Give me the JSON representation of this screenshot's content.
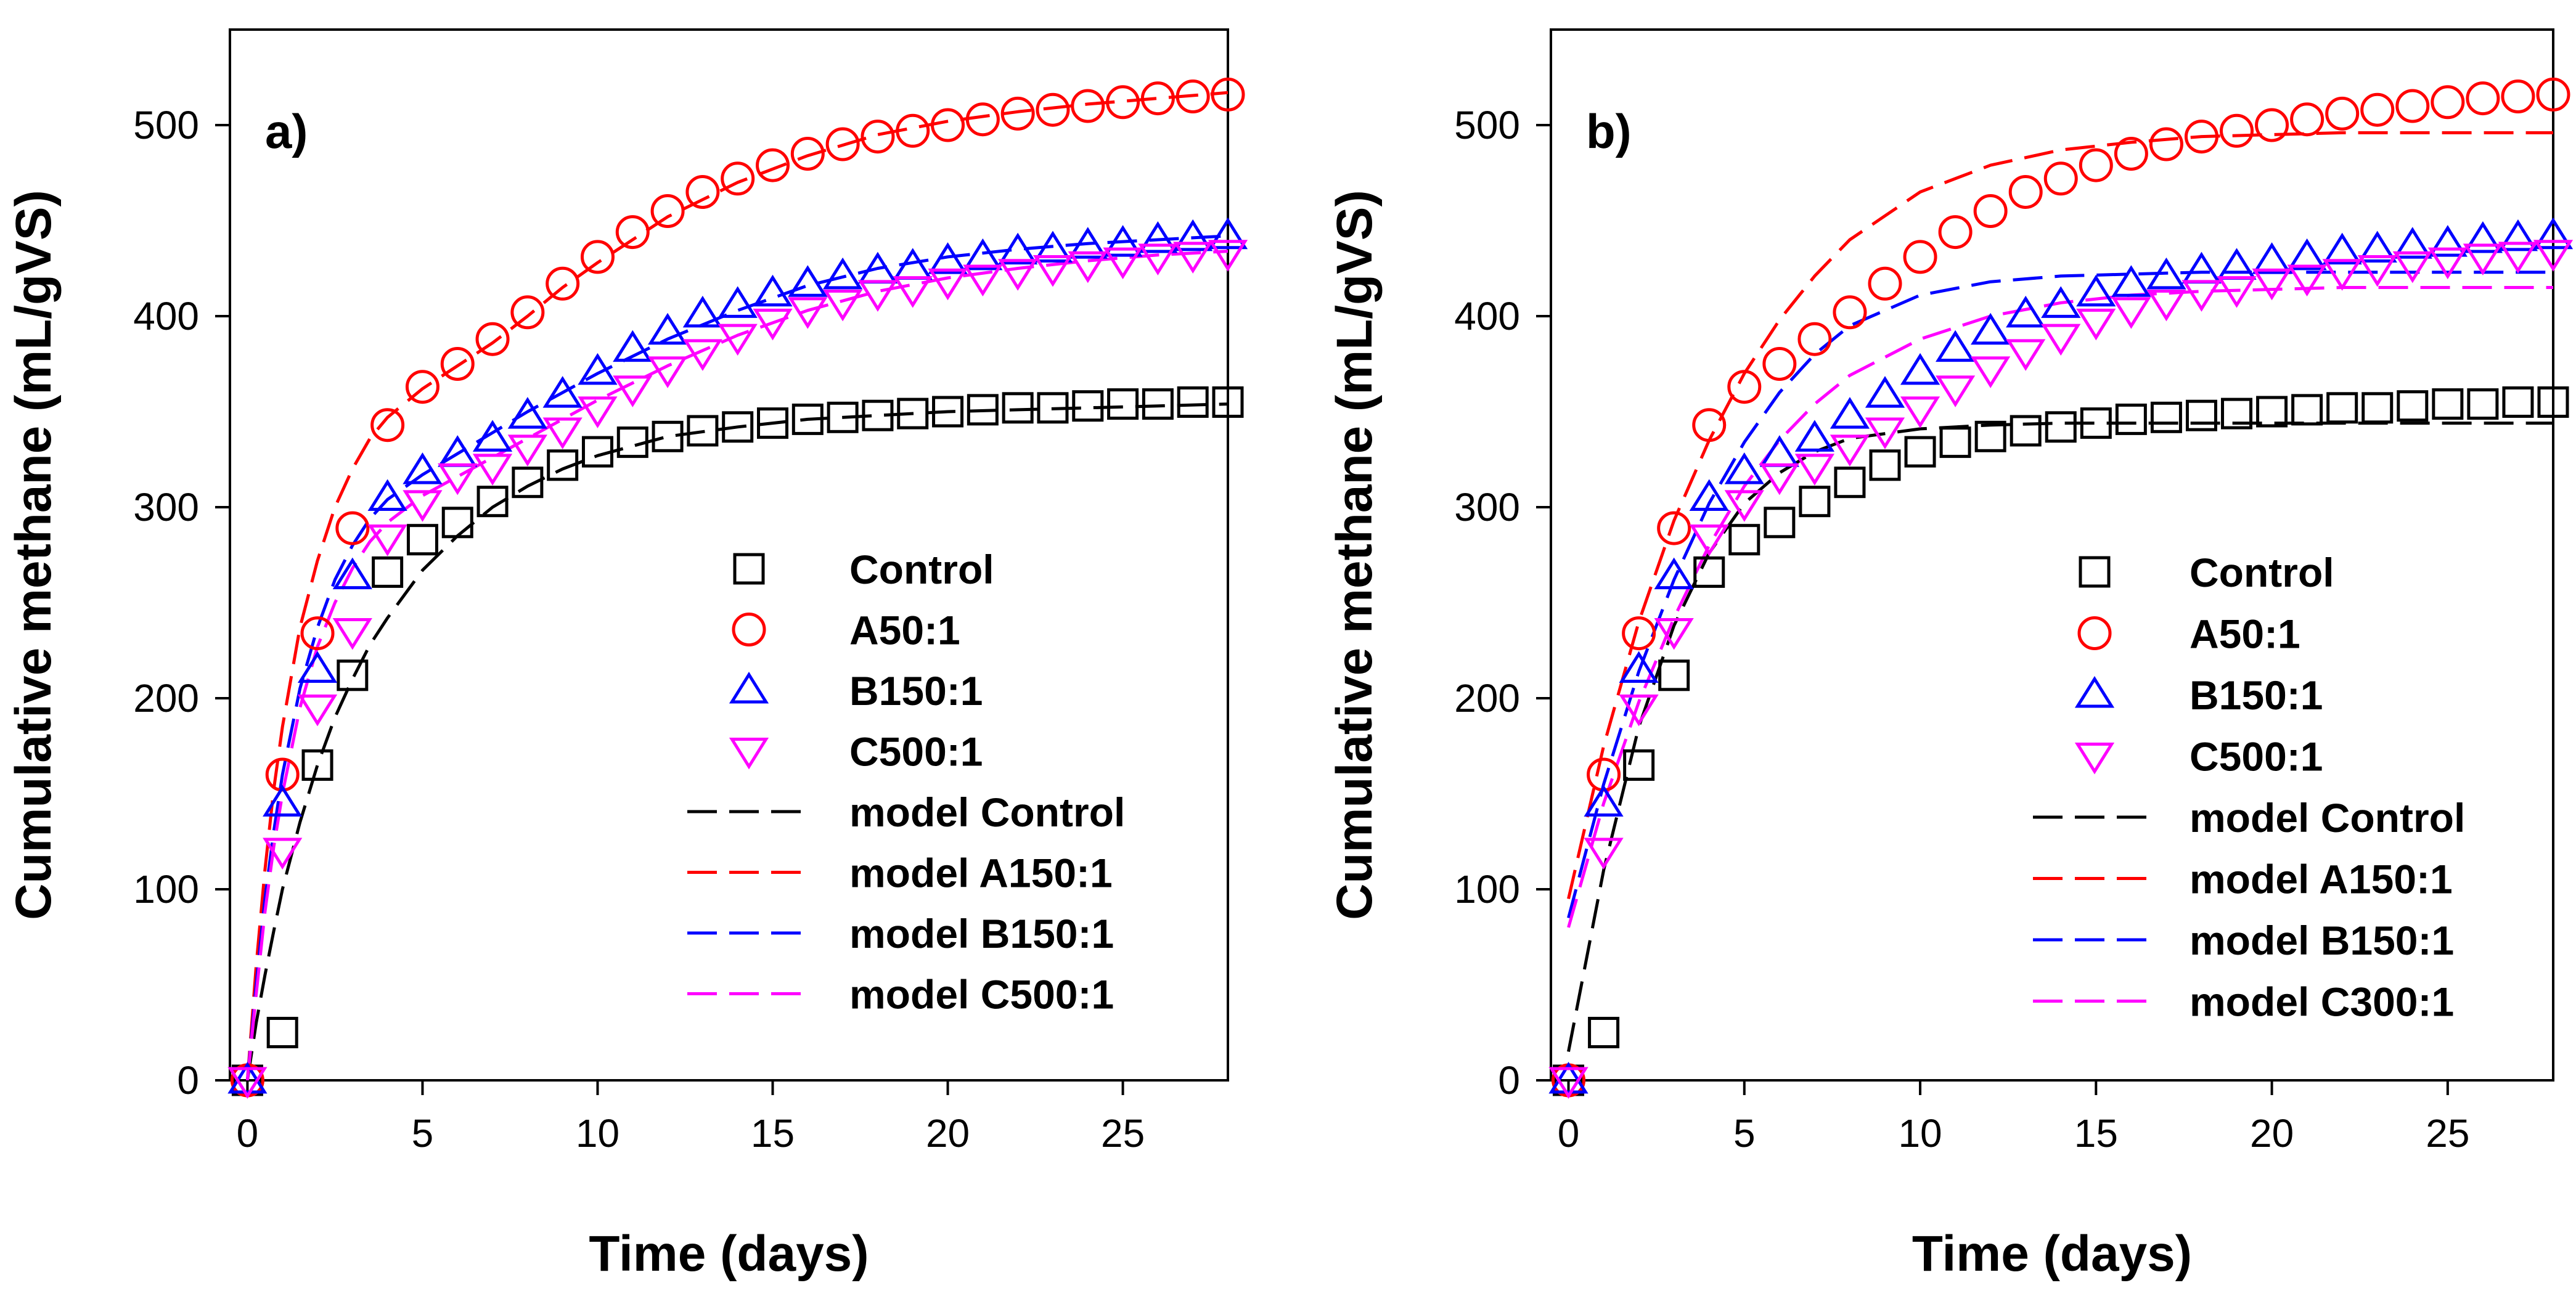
{
  "chart_data": [
    {
      "type": "scatter",
      "panel_label": "a)",
      "xlabel": "Time (days)",
      "ylabel": "Cumulative methane (mL/gVS)",
      "xlim": [
        -0.5,
        28
      ],
      "ylim": [
        0,
        550
      ],
      "xticks": [
        0,
        5,
        10,
        15,
        20,
        25
      ],
      "yticks": [
        0,
        100,
        200,
        300,
        400,
        500
      ],
      "legend_position": "lower-right",
      "series": [
        {
          "name": "Control",
          "kind": "marker",
          "marker": "square",
          "color": "#000000",
          "x": [
            0,
            1,
            2,
            3,
            4,
            5,
            6,
            7,
            8,
            9,
            10,
            11,
            12,
            13,
            14,
            15,
            16,
            17,
            18,
            19,
            20,
            21,
            22,
            23,
            24,
            25,
            26,
            27,
            28
          ],
          "y": [
            0,
            25,
            165,
            212,
            266,
            283,
            292,
            303,
            313,
            322,
            329,
            334,
            337,
            340,
            342,
            344,
            346,
            347,
            348,
            349,
            350,
            351,
            352,
            352,
            353,
            354,
            354,
            355,
            355
          ]
        },
        {
          "name": "A50:1",
          "kind": "marker",
          "marker": "circle",
          "color": "#ff0000",
          "x": [
            0,
            1,
            2,
            3,
            4,
            5,
            6,
            7,
            8,
            9,
            10,
            11,
            12,
            13,
            14,
            15,
            16,
            17,
            18,
            19,
            20,
            21,
            22,
            23,
            24,
            25,
            26,
            27,
            28
          ],
          "y": [
            0,
            160,
            234,
            289,
            343,
            363,
            375,
            388,
            402,
            417,
            431,
            444,
            455,
            465,
            472,
            479,
            485,
            490,
            494,
            497,
            500,
            503,
            506,
            508,
            510,
            512,
            514,
            515,
            516
          ]
        },
        {
          "name": "B150:1",
          "kind": "marker",
          "marker": "triangle-up",
          "color": "#0000ff",
          "x": [
            0,
            1,
            2,
            3,
            4,
            5,
            6,
            7,
            8,
            9,
            10,
            11,
            12,
            13,
            14,
            15,
            16,
            17,
            18,
            19,
            20,
            21,
            22,
            23,
            24,
            25,
            26,
            27,
            28
          ],
          "y": [
            0,
            145,
            215,
            264,
            305,
            319,
            328,
            336,
            348,
            359,
            371,
            383,
            392,
            401,
            406,
            412,
            417,
            421,
            424,
            426,
            429,
            431,
            434,
            435,
            437,
            438,
            440,
            441,
            442
          ]
        },
        {
          "name": "C500:1",
          "kind": "marker",
          "marker": "triangle-down",
          "color": "#ff00ff",
          "x": [
            0,
            1,
            2,
            3,
            4,
            5,
            6,
            7,
            8,
            9,
            10,
            11,
            12,
            13,
            14,
            15,
            16,
            17,
            18,
            19,
            20,
            21,
            22,
            23,
            24,
            25,
            26,
            27,
            28
          ],
          "y": [
            0,
            120,
            195,
            235,
            284,
            302,
            316,
            321,
            331,
            340,
            351,
            362,
            372,
            381,
            389,
            397,
            403,
            407,
            412,
            414,
            418,
            420,
            423,
            425,
            427,
            429,
            431,
            432,
            433
          ]
        },
        {
          "name": "model Control",
          "kind": "model",
          "color": "#000000",
          "x": [
            0,
            0.25,
            0.5,
            0.75,
            1,
            1.5,
            2,
            2.5,
            3,
            3.5,
            4,
            5,
            6,
            7,
            8,
            9,
            10,
            12,
            14,
            16,
            18,
            20,
            22,
            24,
            26,
            28
          ],
          "y": [
            0,
            30,
            55,
            78,
            100,
            135,
            165,
            190,
            210,
            228,
            242,
            267,
            285,
            300,
            311,
            320,
            327,
            337,
            342,
            346,
            348,
            350,
            351,
            352,
            353,
            354
          ]
        },
        {
          "name": "model A150:1",
          "kind": "model",
          "color": "#ff0000",
          "x": [
            0,
            0.25,
            0.5,
            0.75,
            1,
            1.5,
            2,
            2.5,
            3,
            3.5,
            4,
            5,
            6,
            7,
            8,
            9,
            10,
            12,
            14,
            16,
            18,
            20,
            22,
            24,
            26,
            28
          ],
          "y": [
            0,
            60,
            110,
            152,
            185,
            237,
            272,
            300,
            320,
            336,
            347,
            362,
            374,
            386,
            400,
            415,
            428,
            452,
            470,
            484,
            495,
            502,
            507,
            511,
            514,
            517
          ]
        },
        {
          "name": "model B150:1",
          "kind": "model",
          "color": "#0000ff",
          "x": [
            0,
            0.25,
            0.5,
            0.75,
            1,
            1.5,
            2,
            2.5,
            3,
            3.5,
            4,
            5,
            6,
            7,
            8,
            9,
            10,
            12,
            14,
            16,
            18,
            20,
            22,
            24,
            26,
            28
          ],
          "y": [
            0,
            50,
            95,
            130,
            160,
            205,
            237,
            262,
            280,
            294,
            304,
            317,
            328,
            339,
            350,
            360,
            370,
            388,
            403,
            416,
            425,
            431,
            435,
            438,
            440,
            442
          ]
        },
        {
          "name": "model C500:1",
          "kind": "model",
          "color": "#ff00ff",
          "x": [
            0,
            0.25,
            0.5,
            0.75,
            1,
            1.5,
            2,
            2.5,
            3,
            3.5,
            4,
            5,
            6,
            7,
            8,
            9,
            10,
            12,
            14,
            16,
            18,
            20,
            22,
            24,
            26,
            28
          ],
          "y": [
            0,
            45,
            88,
            122,
            150,
            195,
            227,
            250,
            268,
            282,
            292,
            306,
            316,
            326,
            336,
            346,
            356,
            374,
            390,
            403,
            413,
            420,
            425,
            429,
            432,
            434
          ]
        }
      ]
    },
    {
      "type": "scatter",
      "panel_label": "b)",
      "xlabel": "Time (days)",
      "ylabel": "Cumulative methane (mL/gVS)",
      "xlim": [
        -0.5,
        28
      ],
      "ylim": [
        0,
        550
      ],
      "xticks": [
        0,
        5,
        10,
        15,
        20,
        25
      ],
      "yticks": [
        0,
        100,
        200,
        300,
        400,
        500
      ],
      "legend_position": "lower-right",
      "series": [
        {
          "name": "Control",
          "kind": "marker",
          "marker": "square",
          "color": "#000000",
          "x": [
            0,
            1,
            2,
            3,
            4,
            5,
            6,
            7,
            8,
            9,
            10,
            11,
            12,
            13,
            14,
            15,
            16,
            17,
            18,
            19,
            20,
            21,
            22,
            23,
            24,
            25,
            26,
            27,
            28
          ],
          "y": [
            0,
            25,
            165,
            212,
            266,
            283,
            292,
            303,
            313,
            322,
            329,
            334,
            337,
            340,
            342,
            344,
            346,
            347,
            348,
            349,
            350,
            351,
            352,
            352,
            353,
            354,
            354,
            355,
            355
          ]
        },
        {
          "name": "A50:1",
          "kind": "marker",
          "marker": "circle",
          "color": "#ff0000",
          "x": [
            0,
            1,
            2,
            3,
            4,
            5,
            6,
            7,
            8,
            9,
            10,
            11,
            12,
            13,
            14,
            15,
            16,
            17,
            18,
            19,
            20,
            21,
            22,
            23,
            24,
            25,
            26,
            27,
            28
          ],
          "y": [
            0,
            160,
            234,
            289,
            343,
            363,
            375,
            388,
            402,
            417,
            431,
            444,
            455,
            465,
            472,
            479,
            485,
            490,
            494,
            497,
            500,
            503,
            506,
            508,
            510,
            512,
            514,
            515,
            516
          ]
        },
        {
          "name": "B150:1",
          "kind": "marker",
          "marker": "triangle-up",
          "color": "#0000ff",
          "x": [
            0,
            1,
            2,
            3,
            4,
            5,
            6,
            7,
            8,
            9,
            10,
            11,
            12,
            13,
            14,
            15,
            16,
            17,
            18,
            19,
            20,
            21,
            22,
            23,
            24,
            25,
            26,
            27,
            28
          ],
          "y": [
            0,
            145,
            215,
            264,
            305,
            319,
            328,
            336,
            348,
            359,
            371,
            383,
            392,
            401,
            406,
            412,
            417,
            421,
            424,
            426,
            429,
            431,
            434,
            435,
            437,
            438,
            440,
            441,
            442
          ]
        },
        {
          "name": "C500:1",
          "kind": "marker",
          "marker": "triangle-down",
          "color": "#ff00ff",
          "x": [
            0,
            1,
            2,
            3,
            4,
            5,
            6,
            7,
            8,
            9,
            10,
            11,
            12,
            13,
            14,
            15,
            16,
            17,
            18,
            19,
            20,
            21,
            22,
            23,
            24,
            25,
            26,
            27,
            28
          ],
          "y": [
            0,
            120,
            195,
            235,
            284,
            302,
            316,
            321,
            331,
            340,
            351,
            362,
            372,
            381,
            389,
            397,
            403,
            407,
            412,
            414,
            418,
            420,
            423,
            425,
            427,
            429,
            431,
            432,
            433
          ]
        },
        {
          "name": "model Control",
          "kind": "model",
          "color": "#000000",
          "x": [
            0,
            1,
            2,
            3,
            4,
            5,
            6,
            7,
            8,
            10,
            12,
            14,
            16,
            18,
            20,
            22,
            24,
            26,
            28
          ],
          "y": [
            15,
            110,
            185,
            238,
            276,
            302,
            318,
            329,
            336,
            341,
            343,
            344,
            344,
            344,
            344,
            344,
            344,
            344,
            344
          ]
        },
        {
          "name": "model A150:1",
          "kind": "model",
          "color": "#ff0000",
          "x": [
            0,
            1,
            2,
            3,
            4,
            5,
            6,
            7,
            8,
            10,
            12,
            14,
            16,
            18,
            20,
            22,
            24,
            26,
            28
          ],
          "y": [
            95,
            175,
            240,
            293,
            335,
            370,
            398,
            421,
            440,
            465,
            479,
            487,
            491,
            494,
            495,
            496,
            496,
            496,
            496
          ]
        },
        {
          "name": "model B150:1",
          "kind": "model",
          "color": "#0000ff",
          "x": [
            0,
            1,
            2,
            3,
            4,
            5,
            6,
            7,
            8,
            10,
            12,
            14,
            16,
            18,
            20,
            22,
            24,
            26,
            28
          ],
          "y": [
            85,
            155,
            214,
            262,
            302,
            334,
            360,
            380,
            395,
            411,
            418,
            421,
            422,
            423,
            423,
            423,
            423,
            423,
            423
          ]
        },
        {
          "name": "model C300:1",
          "kind": "model",
          "color": "#ff00ff",
          "x": [
            0,
            1,
            2,
            3,
            4,
            5,
            6,
            7,
            8,
            10,
            12,
            14,
            16,
            18,
            20,
            22,
            24,
            26,
            28
          ],
          "y": [
            80,
            145,
            198,
            242,
            280,
            311,
            335,
            354,
            369,
            388,
            400,
            407,
            411,
            413,
            414,
            415,
            415,
            415,
            415
          ]
        }
      ]
    }
  ]
}
